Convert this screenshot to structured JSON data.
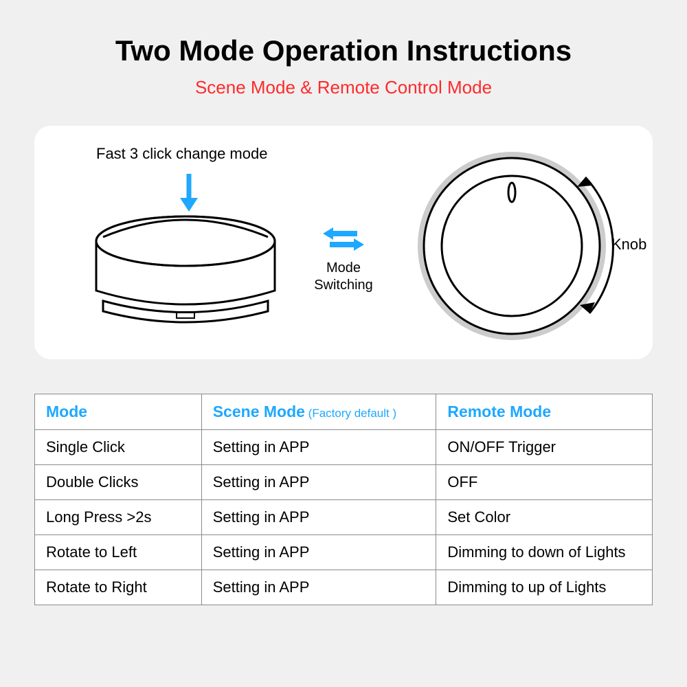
{
  "colors": {
    "accent_red": "#ff2a2a",
    "accent_blue": "#1ea8ff",
    "table_border": "#8a8a8a",
    "bg_page": "#f0f0f0",
    "bg_panel": "#ffffff",
    "text": "#000000"
  },
  "header": {
    "title": "Two Mode Operation Instructions",
    "subtitle": "Scene Mode & Remote Control Mode"
  },
  "diagram": {
    "fast_click_label": "Fast 3 click change mode",
    "mode_switch_label": "Mode Switching",
    "knob_label": "Knob"
  },
  "table": {
    "headers": {
      "mode": "Mode",
      "scene": "Scene Mode",
      "scene_note": " (Factory default )",
      "remote": "Remote Mode"
    },
    "rows": [
      {
        "mode": "Single Click",
        "scene": "Setting in APP",
        "remote": "ON/OFF Trigger"
      },
      {
        "mode": "Double Clicks",
        "scene": "Setting in APP",
        "remote": "OFF"
      },
      {
        "mode": "Long Press >2s",
        "scene": "Setting in APP",
        "remote": "Set Color"
      },
      {
        "mode": "Rotate to Left",
        "scene": "Setting in APP",
        "remote": "Dimming to down of Lights"
      },
      {
        "mode": "Rotate to Right",
        "scene": "Setting in APP",
        "remote": "Dimming to up of Lights"
      }
    ]
  }
}
